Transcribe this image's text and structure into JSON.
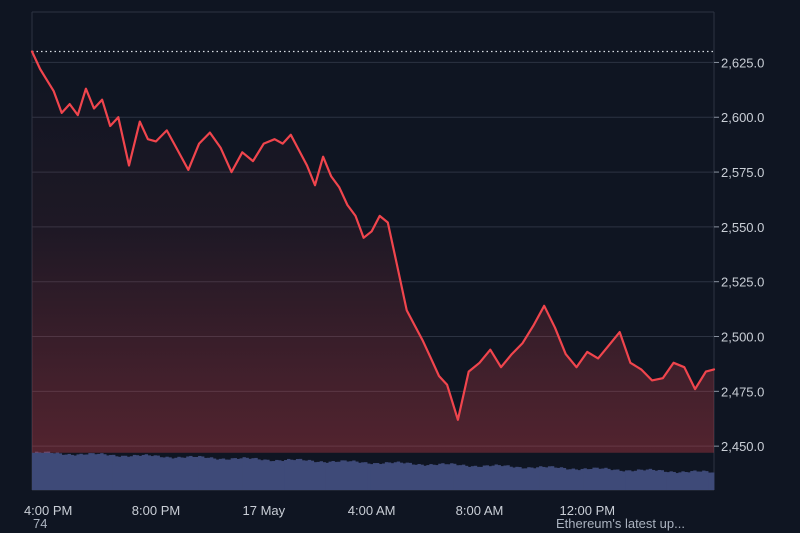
{
  "chart_data": {
    "type": "line",
    "title": "",
    "xlabel": "",
    "ylabel": "",
    "ylim": [
      2430,
      2648
    ],
    "yticks": [
      2450,
      2475,
      2500,
      2525,
      2550,
      2575,
      2600,
      2625
    ],
    "ytick_labels": [
      "2,450.0",
      "2,475.0",
      "2,500.0",
      "2,525.0",
      "2,550.0",
      "2,575.0",
      "2,600.0",
      "2,625.0"
    ],
    "xtick_labels": [
      "4:00 PM",
      "8:00 PM",
      "17 May",
      "4:00 AM",
      "8:00 AM",
      "12:00 PM"
    ],
    "xticks_hours": [
      0.6,
      4.6,
      8.6,
      12.6,
      16.6,
      20.6
    ],
    "x_range_hours": [
      0,
      25.3
    ],
    "reference_line": 2630,
    "grid": true,
    "colors": {
      "line": "#f0454d",
      "fill": "#f0454d",
      "volume": "#3e4a78",
      "reference": "#d8dde4",
      "grid": "#2c3342",
      "background": "#0f1522"
    },
    "series": [
      {
        "x_hours": [
          0.0,
          0.3,
          0.5,
          0.8,
          1.1,
          1.4,
          1.7,
          2.0,
          2.3,
          2.6,
          2.9,
          3.2,
          3.6,
          4.0,
          4.3,
          4.6,
          5.0,
          5.4,
          5.8,
          6.2,
          6.6,
          7.0,
          7.4,
          7.8,
          8.2,
          8.6,
          9.0,
          9.3,
          9.6,
          9.9,
          10.2,
          10.5,
          10.8,
          11.1,
          11.4,
          11.7,
          12.0,
          12.3,
          12.6,
          12.9,
          13.2,
          13.5,
          13.9,
          14.2,
          14.5,
          14.8,
          15.1,
          15.4,
          15.8,
          16.2,
          16.6,
          17.0,
          17.4,
          17.8,
          18.2,
          18.6,
          19.0,
          19.4,
          19.8,
          20.2,
          20.6,
          21.0,
          21.4,
          21.8,
          22.2,
          22.6,
          23.0,
          23.4,
          23.8,
          24.2,
          24.6,
          25.0,
          25.3
        ],
        "y": [
          2630,
          2622,
          2618,
          2612,
          2602,
          2606,
          2601,
          2613,
          2604,
          2608,
          2596,
          2600,
          2578,
          2598,
          2590,
          2589,
          2594,
          2585,
          2576,
          2588,
          2593,
          2586,
          2575,
          2584,
          2580,
          2588,
          2590,
          2588,
          2592,
          2585,
          2578,
          2569,
          2582,
          2573,
          2568,
          2560,
          2555,
          2545,
          2548,
          2555,
          2552,
          2535,
          2512,
          2505,
          2498,
          2490,
          2482,
          2478,
          2462,
          2484,
          2488,
          2494,
          2486,
          2492,
          2497,
          2505,
          2514,
          2504,
          2492,
          2486,
          2493,
          2490,
          2496,
          2502,
          2488,
          2485,
          2480,
          2481,
          2488,
          2486,
          2476,
          2484,
          2485
        ]
      }
    ],
    "volume": {
      "bars": 230,
      "level_from": 2447,
      "level_to": 2438,
      "floor": 2430
    }
  },
  "footer": {
    "left_text": "74",
    "right_text": "Ethereum's latest up..."
  }
}
